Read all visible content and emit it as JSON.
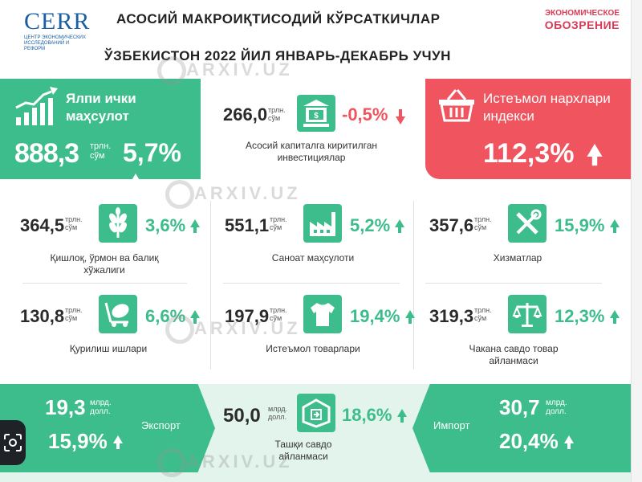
{
  "header": {
    "logo_left": "CERR",
    "logo_left_sub": "ЦЕНТР ЭКОНОМИЧЕСКИХ ИССЛЕДОВАНИЙ И РЕФОРМ",
    "title_line1": "АСОСИЙ МАКРОИҚТИСОДИЙ КЎРСАТКИЧЛАР",
    "title_line2": "ЎЗБЕКИСТОН 2022 ЙИЛ ЯНВАРЬ-ДЕКАБРЬ УЧУН",
    "logo_right_line1": "ЭКОНОМИЧЕСКОЕ",
    "logo_right_line2": "ОБОЗРЕНИЕ"
  },
  "gdp": {
    "label": "Ялпи ички маҳсулот",
    "value": "888,3",
    "unit": "трлн. сўм",
    "pct": "5,7%"
  },
  "investment": {
    "value": "266,0",
    "unit": "трлн. сўм",
    "pct": "-0,5%",
    "label": "Асосий капиталга киритилган инвестициялар"
  },
  "cpi": {
    "label": "Истеъмол нархлари индекси",
    "value": "112,3%"
  },
  "cells": [
    {
      "value": "364,5",
      "unit": "трлн. сўм",
      "pct": "3,6%",
      "label": "Қишлоқ, ўрмон ва балиқ хўжалиги",
      "icon": "wheat-icon"
    },
    {
      "value": "551,1",
      "unit": "трлн. сўм",
      "pct": "5,2%",
      "label": "Саноат маҳсулоти",
      "icon": "factory-icon"
    },
    {
      "value": "357,6",
      "unit": "трлн. сўм",
      "pct": "15,9%",
      "label": "Хизматлар",
      "icon": "tools-icon"
    },
    {
      "value": "130,8",
      "unit": "трлн. сўм",
      "pct": "6,6%",
      "label": "Қурилиш ишлари",
      "icon": "concrete-mixer-icon"
    },
    {
      "value": "197,9",
      "unit": "трлн. сўм",
      "pct": "19,4%",
      "label": "Истеъмол товарлари",
      "icon": "tshirt-icon"
    },
    {
      "value": "319,3",
      "unit": "трлн. сўм",
      "pct": "12,3%",
      "label": "Чакана савдо товар айланмаси",
      "icon": "scales-icon"
    }
  ],
  "export": {
    "value": "19,3",
    "unit": "млрд. долл.",
    "pct": "15,9%",
    "label": "Экспорт"
  },
  "trade": {
    "value": "50,0",
    "unit": "млрд. долл.",
    "pct": "18,6%",
    "label": "Ташқи савдо айланмаси"
  },
  "import": {
    "value": "30,7",
    "unit": "млрд. долл.",
    "pct": "20,4%",
    "label": "Импорт"
  },
  "watermark": "ARXIV.UZ",
  "colors": {
    "green": "#3dbd8c",
    "red": "#f0545f",
    "blue": "#1a5fa6"
  }
}
